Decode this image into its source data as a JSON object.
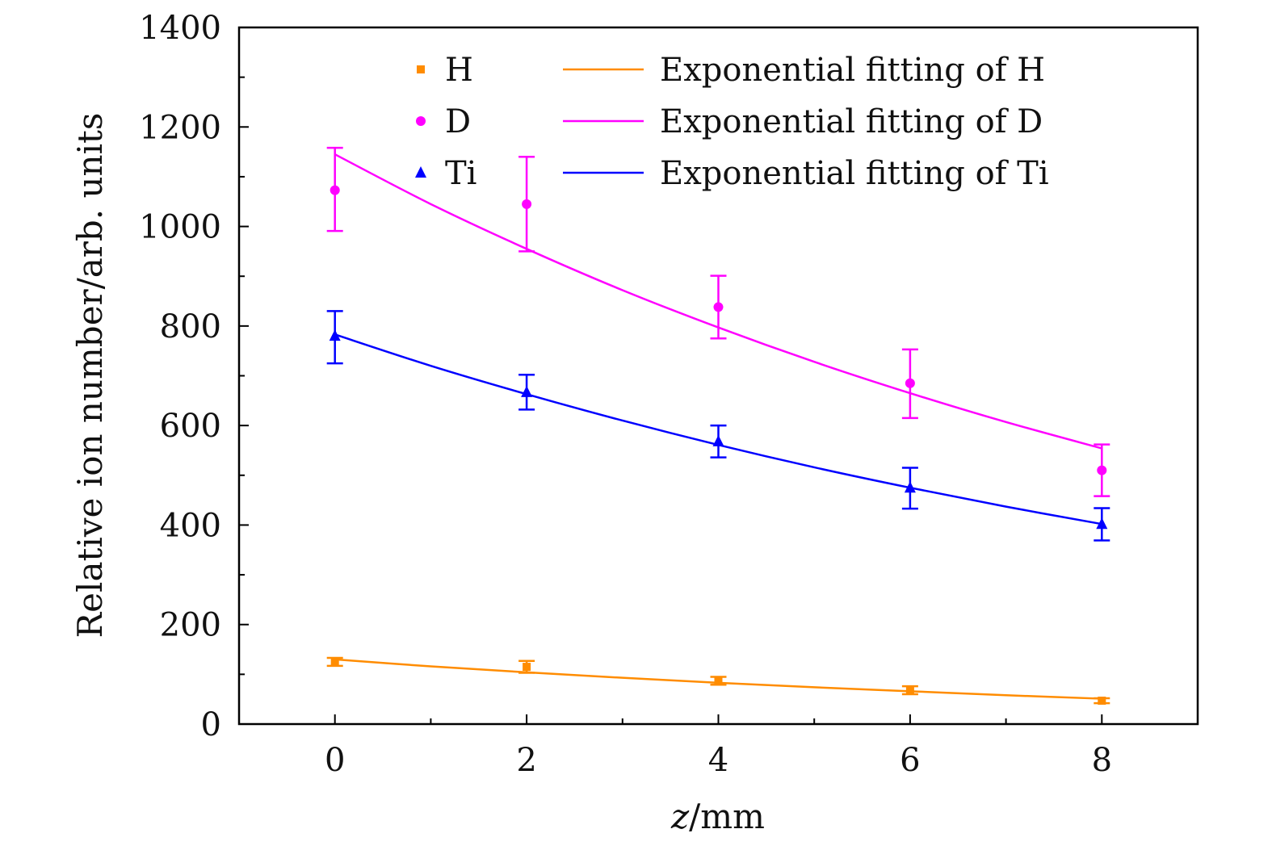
{
  "chart_data": {
    "type": "scatter",
    "title": "",
    "xlabel_var": "z",
    "xlabel_unit": "/mm",
    "ylabel": "Relative ion number/arb. units",
    "xlim": [
      -1,
      9
    ],
    "ylim": [
      0,
      1400
    ],
    "xticks": [
      0,
      2,
      4,
      6,
      8
    ],
    "yticks": [
      0,
      200,
      400,
      600,
      800,
      1000,
      1200,
      1400
    ],
    "grid": false,
    "legend_position": "top",
    "series": [
      {
        "name": "H",
        "fit_name": "Exponential fitting of H",
        "marker": "square",
        "color": "#ff8c00",
        "x": [
          0,
          2,
          4,
          6,
          8
        ],
        "y": [
          125,
          115,
          87,
          68,
          47
        ],
        "err_minus": [
          8,
          12,
          8,
          8,
          5
        ],
        "err_plus": [
          8,
          12,
          8,
          8,
          5
        ],
        "fit_x": [
          0,
          1,
          2,
          3,
          4,
          5,
          6,
          7,
          8
        ],
        "fit_y": [
          130,
          116,
          104,
          93,
          83,
          74,
          66,
          58,
          51
        ]
      },
      {
        "name": "D",
        "fit_name": "Exponential fitting of D",
        "marker": "circle",
        "color": "#ff00ff",
        "x": [
          0,
          2,
          4,
          6,
          8
        ],
        "y": [
          1073,
          1045,
          838,
          685,
          510
        ],
        "err_minus": [
          82,
          95,
          63,
          70,
          52
        ],
        "err_plus": [
          85,
          95,
          63,
          68,
          52
        ],
        "fit_x": [
          0,
          1,
          2,
          3,
          4,
          5,
          6,
          7,
          8
        ],
        "fit_y": [
          1145,
          1045,
          955,
          872,
          797,
          728,
          665,
          607,
          554
        ]
      },
      {
        "name": "Ti",
        "fit_name": "Exponential fitting of Ti",
        "marker": "triangle",
        "color": "#0000ff",
        "x": [
          0,
          2,
          4,
          6,
          8
        ],
        "y": [
          780,
          667,
          568,
          475,
          402
        ],
        "err_minus": [
          55,
          35,
          32,
          42,
          33
        ],
        "err_plus": [
          50,
          35,
          32,
          40,
          32
        ],
        "fit_x": [
          0,
          1,
          2,
          3,
          4,
          5,
          6,
          7,
          8
        ],
        "fit_y": [
          783,
          720,
          663,
          610,
          561,
          516,
          475,
          437,
          402
        ]
      }
    ]
  }
}
